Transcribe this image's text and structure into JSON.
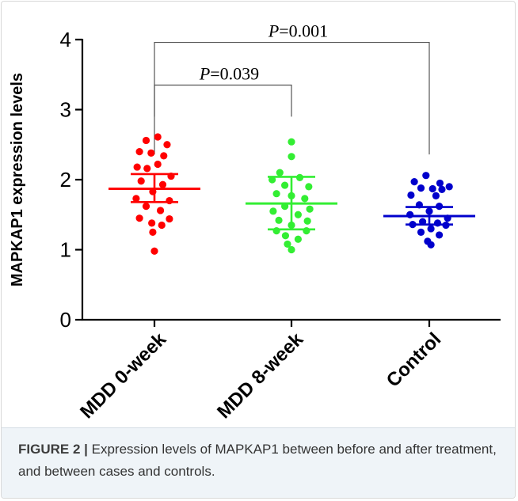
{
  "chart_data": {
    "type": "scatter",
    "ylabel": "MAPKAP1 expression levels",
    "xlabel": "",
    "ylim": [
      0,
      4
    ],
    "yticks": [
      0,
      1,
      2,
      3,
      4
    ],
    "ytick_labels": [
      "0",
      "1",
      "2",
      "3",
      "4"
    ],
    "categories": [
      "MDD 0-week",
      "MDD 8-week",
      "Control"
    ],
    "series": [
      {
        "category": "MDD 0-week",
        "color": "#ff0000",
        "mean": 1.87,
        "error_low": 1.68,
        "error_high": 2.08,
        "points": [
          {
            "dx": -0.25,
            "y": 2.56
          },
          {
            "dx": 0.1,
            "y": 2.61
          },
          {
            "dx": 0.38,
            "y": 2.5
          },
          {
            "dx": -0.45,
            "y": 2.4
          },
          {
            "dx": -0.1,
            "y": 2.38
          },
          {
            "dx": 0.28,
            "y": 2.34
          },
          {
            "dx": 0.1,
            "y": 2.22
          },
          {
            "dx": -0.52,
            "y": 2.18
          },
          {
            "dx": -0.22,
            "y": 2.16
          },
          {
            "dx": 0.5,
            "y": 2.05
          },
          {
            "dx": -0.4,
            "y": 1.98
          },
          {
            "dx": 0.25,
            "y": 1.93
          },
          {
            "dx": -0.05,
            "y": 1.83
          },
          {
            "dx": -0.55,
            "y": 1.73
          },
          {
            "dx": 0.45,
            "y": 1.7
          },
          {
            "dx": -0.25,
            "y": 1.62
          },
          {
            "dx": 0.18,
            "y": 1.56
          },
          {
            "dx": -0.45,
            "y": 1.45
          },
          {
            "dx": 0.45,
            "y": 1.44
          },
          {
            "dx": -0.08,
            "y": 1.38
          },
          {
            "dx": 0.22,
            "y": 1.35
          },
          {
            "dx": -0.05,
            "y": 1.25
          },
          {
            "dx": 0.0,
            "y": 0.98
          }
        ]
      },
      {
        "category": "MDD 8-week",
        "color": "#33ee33",
        "mean": 1.66,
        "error_low": 1.29,
        "error_high": 2.04,
        "points": [
          {
            "dx": 0.0,
            "y": 2.54
          },
          {
            "dx": 0.0,
            "y": 2.33
          },
          {
            "dx": -0.35,
            "y": 2.1
          },
          {
            "dx": 0.25,
            "y": 2.03
          },
          {
            "dx": -0.58,
            "y": 2.0
          },
          {
            "dx": -0.2,
            "y": 1.92
          },
          {
            "dx": 0.52,
            "y": 1.9
          },
          {
            "dx": -0.45,
            "y": 1.8
          },
          {
            "dx": 0.0,
            "y": 1.77
          },
          {
            "dx": 0.4,
            "y": 1.73
          },
          {
            "dx": -0.2,
            "y": 1.62
          },
          {
            "dx": 0.55,
            "y": 1.58
          },
          {
            "dx": -0.55,
            "y": 1.55
          },
          {
            "dx": 0.2,
            "y": 1.5
          },
          {
            "dx": -0.38,
            "y": 1.42
          },
          {
            "dx": 0.48,
            "y": 1.41
          },
          {
            "dx": 0.0,
            "y": 1.35
          },
          {
            "dx": -0.45,
            "y": 1.27
          },
          {
            "dx": 0.45,
            "y": 1.27
          },
          {
            "dx": -0.18,
            "y": 1.2
          },
          {
            "dx": 0.2,
            "y": 1.15
          },
          {
            "dx": -0.12,
            "y": 1.08
          },
          {
            "dx": 0.0,
            "y": 1.0
          }
        ]
      },
      {
        "category": "Control",
        "color": "#0000cc",
        "mean": 1.48,
        "error_low": 1.36,
        "error_high": 1.61,
        "points": [
          {
            "dx": -0.1,
            "y": 2.06
          },
          {
            "dx": -0.45,
            "y": 1.97
          },
          {
            "dx": 0.32,
            "y": 1.95
          },
          {
            "dx": 0.6,
            "y": 1.9
          },
          {
            "dx": -0.25,
            "y": 1.88
          },
          {
            "dx": 0.1,
            "y": 1.87
          },
          {
            "dx": 0.38,
            "y": 1.86
          },
          {
            "dx": -0.55,
            "y": 1.78
          },
          {
            "dx": 0.2,
            "y": 1.77
          },
          {
            "dx": -0.3,
            "y": 1.64
          },
          {
            "dx": 0.3,
            "y": 1.62
          },
          {
            "dx": 0.0,
            "y": 1.55
          },
          {
            "dx": -0.58,
            "y": 1.5
          },
          {
            "dx": 0.55,
            "y": 1.45
          },
          {
            "dx": -0.2,
            "y": 1.4
          },
          {
            "dx": 0.25,
            "y": 1.38
          },
          {
            "dx": -0.5,
            "y": 1.36
          },
          {
            "dx": 0.5,
            "y": 1.35
          },
          {
            "dx": 0.05,
            "y": 1.3
          },
          {
            "dx": -0.25,
            "y": 1.25
          },
          {
            "dx": 0.3,
            "y": 1.21
          },
          {
            "dx": -0.05,
            "y": 1.12
          },
          {
            "dx": 0.05,
            "y": 1.07
          }
        ]
      }
    ],
    "annotations": [
      {
        "from": "MDD 0-week",
        "to": "MDD 8-week",
        "p_label": "P",
        "p_value": "=0.039",
        "bracket_y": 3.35,
        "drop_y_to": 2.9
      },
      {
        "from": "MDD 0-week",
        "to": "Control",
        "p_label": "P",
        "p_value": "=0.001",
        "bracket_y": 3.96,
        "drop_y_to": 2.36
      }
    ]
  },
  "caption": {
    "label": "FIGURE 2 |",
    "text": " Expression levels of MAPKAP1 between before and after treatment, and between cases and controls."
  }
}
